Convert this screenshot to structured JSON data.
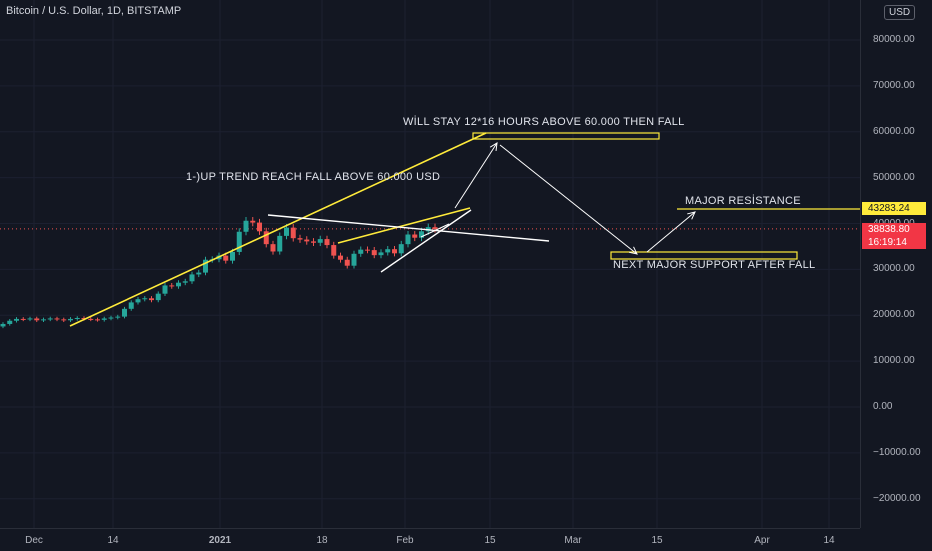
{
  "header": {
    "symbol_title": "Bitcoin / U.S. Dollar, 1D, BITSTAMP",
    "currency": "USD"
  },
  "price_axis": {
    "ticks": [
      "80000.00",
      "70000.00",
      "60000.00",
      "50000.00",
      "40000.00",
      "30000.00",
      "20000.00",
      "10000.00",
      "0.00",
      "−10000.00",
      "−20000.00"
    ],
    "resistance_tag": "43283.24",
    "last_price_tag": "38838.80",
    "countdown_tag": "16:19:14"
  },
  "time_axis": {
    "ticks": [
      "Dec",
      "14",
      "2021",
      "18",
      "Feb",
      "15",
      "Mar",
      "15",
      "Apr",
      "14"
    ]
  },
  "annotations": {
    "stay_above": "WİLL STAY 12*16 HOURS ABOVE 60.000 THEN FALL",
    "up_trend": "1-)UP TREND REACH FALL ABOVE 60.000 USD",
    "major_resistance": "MAJOR RESİSTANCE",
    "next_support": "NEXT MAJOR SUPPORT AFTER FALL"
  },
  "colors": {
    "background": "#131722",
    "up": "#26a69a",
    "down": "#ef5350",
    "trend": "#ffeb3b",
    "drawing": "#ffffff"
  },
  "chart_data": {
    "type": "candlestick",
    "symbol": "BTCUSD",
    "interval": "1D",
    "exchange": "BITSTAMP",
    "y_range": [
      -25000,
      85000
    ],
    "last_price": 38838.8,
    "resistance_level": 43283.24,
    "closes_approx": [
      18100,
      18800,
      19200,
      19100,
      19300,
      18900,
      19100,
      19300,
      19100,
      18900,
      19200,
      19400,
      19200,
      19100,
      19000,
      19300,
      19500,
      19700,
      21400,
      22800,
      23500,
      23700,
      23300,
      24700,
      26500,
      26300,
      27100,
      27400,
      28900,
      29300,
      32100,
      32200,
      33000,
      31900,
      33800,
      38200,
      40600,
      40200,
      38300,
      35500,
      33900,
      37300,
      39100,
      36800,
      36500,
      36100,
      35800,
      36600,
      35300,
      33000,
      32100,
      30800,
      33400,
      34300,
      34200,
      33100,
      33700,
      34400,
      33500,
      35500,
      37600,
      36900,
      38300,
      39200,
      38800
    ]
  }
}
